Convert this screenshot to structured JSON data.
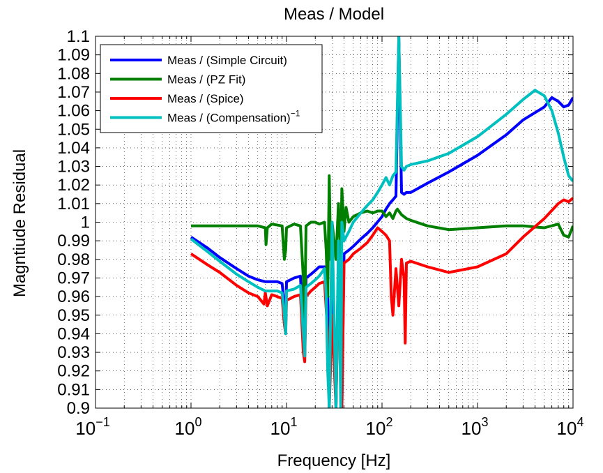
{
  "chart_data": {
    "type": "line",
    "title": "Meas / Model",
    "xlabel": "Frequency [Hz]",
    "ylabel": "Magntiude Residual",
    "x_scale": "log",
    "xlim": [
      0.1,
      10000
    ],
    "ylim": [
      0.9,
      1.1
    ],
    "grid": true,
    "legend_position": "top-left",
    "x_ticks": [
      {
        "base": "10",
        "exp": "−1",
        "value": 0.1
      },
      {
        "base": "10",
        "exp": "0",
        "value": 1
      },
      {
        "base": "10",
        "exp": "1",
        "value": 10
      },
      {
        "base": "10",
        "exp": "2",
        "value": 100
      },
      {
        "base": "10",
        "exp": "3",
        "value": 1000
      },
      {
        "base": "10",
        "exp": "4",
        "value": 10000
      }
    ],
    "y_ticks": [
      "0.9",
      "0.91",
      "0.92",
      "0.93",
      "0.94",
      "0.95",
      "0.96",
      "0.97",
      "0.98",
      "0.99",
      "1",
      "1.01",
      "1.02",
      "1.03",
      "1.04",
      "1.05",
      "1.06",
      "1.07",
      "1.08",
      "1.09",
      "1.1"
    ],
    "series": [
      {
        "name": "Meas / (Simple Circuit)",
        "color": "#0000ff",
        "x": [
          1,
          1.5,
          2,
          3,
          4,
          5,
          6,
          7,
          8,
          9,
          9.5,
          9.8,
          10,
          11,
          12,
          14,
          15,
          15.5,
          16,
          18,
          20,
          22,
          25,
          27,
          28,
          30,
          33,
          35,
          38,
          40,
          45,
          50,
          60,
          70,
          80,
          100,
          110,
          120,
          130,
          140,
          150,
          160,
          170,
          180,
          200,
          300,
          500,
          1000,
          2000,
          3000,
          5000,
          6000,
          7000,
          8000,
          9000,
          10000
        ],
        "y": [
          0.992,
          0.986,
          0.981,
          0.975,
          0.971,
          0.969,
          0.968,
          0.968,
          0.968,
          0.967,
          0.955,
          0.942,
          0.968,
          0.969,
          0.97,
          0.971,
          0.94,
          0.928,
          0.97,
          0.972,
          0.974,
          0.976,
          0.976,
          0.96,
          0.9,
          0.97,
          0.9,
          0.98,
          0.9,
          0.983,
          0.985,
          0.987,
          0.991,
          0.994,
          0.997,
          1.003,
          1.007,
          1.01,
          1.012,
          1.014,
          1.1,
          1.016,
          1.015,
          1.016,
          1.016,
          1.021,
          1.027,
          1.036,
          1.047,
          1.055,
          1.062,
          1.067,
          1.065,
          1.062,
          1.063,
          1.067
        ]
      },
      {
        "name": "Meas / (PZ Fit)",
        "color": "#007f00",
        "x": [
          1,
          2,
          3,
          5,
          6,
          6.1,
          6.3,
          7,
          9,
          9.5,
          9.8,
          10,
          12,
          14,
          15,
          15.5,
          16,
          18,
          20,
          22,
          25,
          26,
          27,
          28,
          29,
          30,
          33,
          35,
          37,
          38,
          40,
          42,
          45,
          50,
          60,
          70,
          80,
          90,
          100,
          110,
          120,
          130,
          140,
          145,
          150,
          160,
          170,
          180,
          200,
          300,
          500,
          1000,
          2000,
          3000,
          5000,
          7000,
          8000,
          9000,
          10000
        ],
        "y": [
          0.998,
          0.998,
          0.998,
          0.998,
          0.997,
          0.988,
          0.997,
          0.999,
          0.998,
          0.98,
          0.985,
          0.997,
          0.999,
          0.998,
          0.97,
          0.945,
          0.998,
          1.0,
          1.0,
          0.999,
          1.0,
          0.985,
          0.96,
          1.025,
          0.98,
          1.0,
          0.98,
          1.01,
          0.98,
          1.018,
          0.995,
          1.008,
          1.0,
          1.003,
          1.005,
          1.006,
          1.005,
          1.006,
          1.006,
          1.003,
          1.005,
          1.002,
          1.006,
          1.007,
          1.006,
          1.004,
          1.003,
          1.002,
          1.001,
          0.998,
          0.996,
          0.997,
          0.998,
          0.998,
          0.997,
          0.999,
          0.993,
          0.992,
          0.998
        ]
      },
      {
        "name": "Meas / (Spice)",
        "color": "#ff0000",
        "x": [
          1,
          1.5,
          2,
          3,
          4,
          5,
          5.8,
          6,
          6.3,
          7,
          8,
          9,
          9.5,
          9.8,
          10,
          11,
          12,
          14,
          15,
          15.5,
          16,
          18,
          20,
          22,
          25,
          27,
          28,
          30,
          33,
          35,
          38,
          40,
          45,
          50,
          60,
          70,
          80,
          90,
          100,
          110,
          120,
          125,
          130,
          140,
          150,
          160,
          170,
          175,
          180,
          200,
          300,
          500,
          1000,
          2000,
          3000,
          5000,
          7000,
          8000,
          9000,
          10000
        ],
        "y": [
          0.983,
          0.977,
          0.973,
          0.966,
          0.962,
          0.96,
          0.956,
          0.962,
          0.955,
          0.961,
          0.96,
          0.959,
          0.945,
          0.94,
          0.958,
          0.959,
          0.96,
          0.961,
          0.93,
          0.925,
          0.96,
          0.963,
          0.965,
          0.967,
          0.968,
          0.94,
          0.9,
          0.95,
          0.9,
          0.97,
          0.9,
          0.978,
          0.98,
          0.983,
          0.986,
          0.989,
          0.993,
          0.997,
          0.995,
          0.993,
          0.99,
          0.96,
          0.95,
          0.975,
          0.955,
          0.98,
          0.97,
          0.935,
          0.978,
          0.979,
          0.976,
          0.973,
          0.976,
          0.983,
          0.992,
          1.002,
          1.01,
          1.012,
          1.011,
          1.013
        ]
      },
      {
        "name": "Meas / (Compensation)",
        "legend_suffix": "−1",
        "color": "#00bfbf",
        "x": [
          1,
          1.5,
          2,
          3,
          4,
          5,
          6,
          7,
          8,
          9,
          9.5,
          9.8,
          10,
          12,
          14,
          15,
          15.5,
          16,
          18,
          20,
          22,
          25,
          26,
          27,
          28,
          29,
          30,
          33,
          35,
          37,
          38,
          40,
          45,
          50,
          60,
          70,
          80,
          90,
          100,
          110,
          120,
          130,
          140,
          150,
          160,
          170,
          180,
          200,
          300,
          500,
          1000,
          2000,
          3000,
          4000,
          5000,
          6000,
          7000,
          8000,
          9000,
          10000
        ],
        "y": [
          0.991,
          0.984,
          0.979,
          0.972,
          0.968,
          0.965,
          0.963,
          0.963,
          0.963,
          0.962,
          0.95,
          0.94,
          0.963,
          0.964,
          0.966,
          0.94,
          0.928,
          0.965,
          0.967,
          0.969,
          0.971,
          0.975,
          0.96,
          0.92,
          0.9,
          0.95,
          1.0,
          0.9,
          0.99,
          0.9,
          1.0,
          0.99,
          0.995,
          1.0,
          1.005,
          1.009,
          1.012,
          1.016,
          1.02,
          1.024,
          1.02,
          1.025,
          1.027,
          1.1,
          1.03,
          1.028,
          1.03,
          1.031,
          1.033,
          1.037,
          1.046,
          1.058,
          1.066,
          1.071,
          1.068,
          1.06,
          1.048,
          1.035,
          1.025,
          1.022
        ]
      }
    ]
  }
}
